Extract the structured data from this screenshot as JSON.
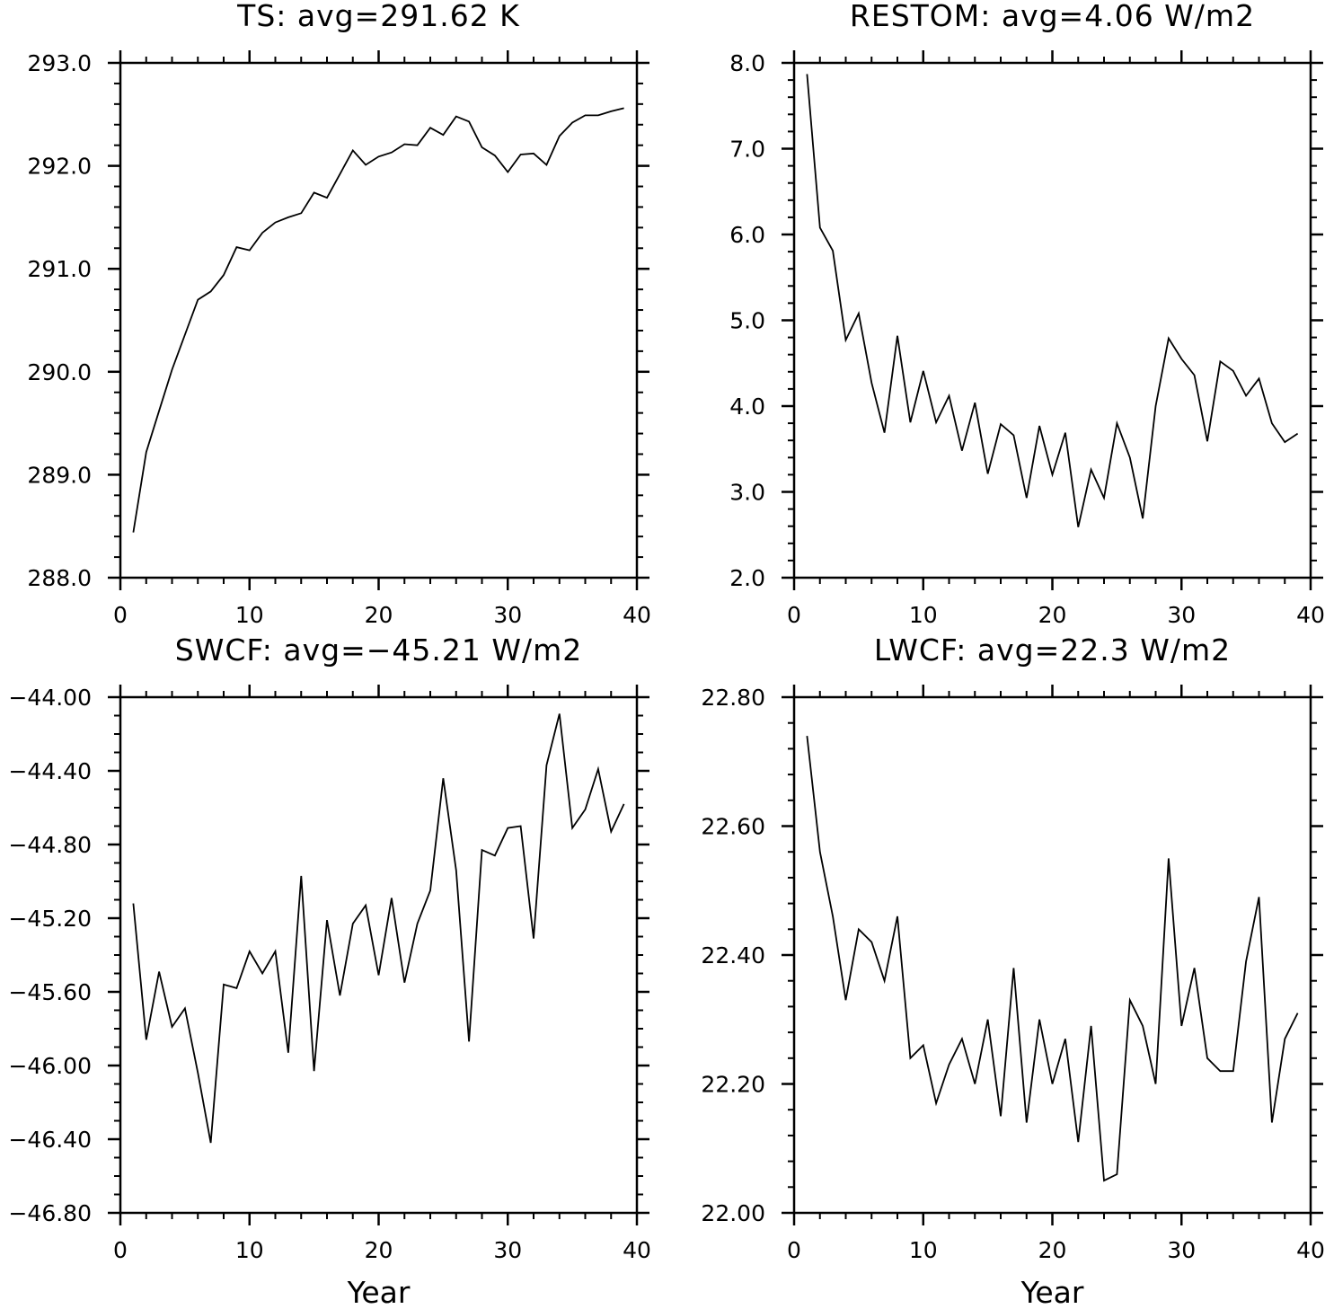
{
  "chart_data": [
    {
      "type": "line",
      "title": "TS: avg=291.62 K",
      "xlabel": "",
      "ylabel": "",
      "xlim": [
        0,
        40
      ],
      "ylim": [
        288.0,
        293.0
      ],
      "xticks": [
        0,
        10,
        20,
        30,
        40
      ],
      "xtick_labels": [
        "0",
        "10",
        "20",
        "30",
        "40"
      ],
      "yticks": [
        288.0,
        289.0,
        290.0,
        291.0,
        292.0,
        293.0
      ],
      "ytick_labels": [
        "288.0",
        "289.0",
        "290.0",
        "291.0",
        "292.0",
        "293.0"
      ],
      "y_minor_step": 0.2,
      "x_minor_step": 2,
      "grid": false,
      "x": [
        1,
        2,
        3,
        4,
        5,
        6,
        7,
        8,
        9,
        10,
        11,
        12,
        13,
        14,
        15,
        16,
        17,
        18,
        19,
        20,
        21,
        22,
        23,
        24,
        25,
        26,
        27,
        28,
        29,
        30,
        31,
        32,
        33,
        34,
        35,
        36,
        37,
        38,
        39
      ],
      "y": [
        288.44,
        289.22,
        289.62,
        290.02,
        290.36,
        290.7,
        290.78,
        290.94,
        291.21,
        291.18,
        291.35,
        291.45,
        291.5,
        291.54,
        291.74,
        291.69,
        291.92,
        292.15,
        292.01,
        292.09,
        292.13,
        292.21,
        292.2,
        292.37,
        292.3,
        292.48,
        292.43,
        292.18,
        292.1,
        291.94,
        292.11,
        292.12,
        292.01,
        292.29,
        292.42,
        292.49,
        292.49,
        292.53,
        292.56
      ]
    },
    {
      "type": "line",
      "title": "RESTOM: avg=4.06 W/m2",
      "xlabel": "",
      "ylabel": "",
      "xlim": [
        0,
        40
      ],
      "ylim": [
        2.0,
        8.0
      ],
      "xticks": [
        0,
        10,
        20,
        30,
        40
      ],
      "xtick_labels": [
        "0",
        "10",
        "20",
        "30",
        "40"
      ],
      "yticks": [
        2.0,
        3.0,
        4.0,
        5.0,
        6.0,
        7.0,
        8.0
      ],
      "ytick_labels": [
        "2.0",
        "3.0",
        "4.0",
        "5.0",
        "6.0",
        "7.0",
        "8.0"
      ],
      "y_minor_step": 0.2,
      "x_minor_step": 2,
      "grid": false,
      "x": [
        1,
        2,
        3,
        4,
        5,
        6,
        7,
        8,
        9,
        10,
        11,
        12,
        13,
        14,
        15,
        16,
        17,
        18,
        19,
        20,
        21,
        22,
        23,
        24,
        25,
        26,
        27,
        28,
        29,
        30,
        31,
        32,
        33,
        34,
        35,
        36,
        37,
        38,
        39
      ],
      "y": [
        7.87,
        6.08,
        5.81,
        4.77,
        5.08,
        4.27,
        3.69,
        4.82,
        3.81,
        4.41,
        3.81,
        4.12,
        3.48,
        4.04,
        3.21,
        3.79,
        3.66,
        2.93,
        3.77,
        3.2,
        3.69,
        2.59,
        3.26,
        2.93,
        3.8,
        3.4,
        2.69,
        4.0,
        4.79,
        4.55,
        4.36,
        3.59,
        4.52,
        4.41,
        4.12,
        4.32,
        3.8,
        3.58,
        3.68
      ]
    },
    {
      "type": "line",
      "title": "SWCF: avg=−45.21 W/m2",
      "xlabel": "Year",
      "ylabel": "",
      "xlim": [
        0,
        40
      ],
      "ylim": [
        -46.8,
        -44.0
      ],
      "xticks": [
        0,
        10,
        20,
        30,
        40
      ],
      "xtick_labels": [
        "0",
        "10",
        "20",
        "30",
        "40"
      ],
      "yticks": [
        -46.8,
        -46.4,
        -46.0,
        -45.6,
        -45.2,
        -44.8,
        -44.4,
        -44.0
      ],
      "ytick_labels": [
        "−46.80",
        "−46.40",
        "−46.00",
        "−45.60",
        "−45.20",
        "−44.80",
        "−44.40",
        "−44.00"
      ],
      "y_minor_step": 0.1,
      "x_minor_step": 2,
      "grid": false,
      "x": [
        1,
        2,
        3,
        4,
        5,
        6,
        7,
        8,
        9,
        10,
        11,
        12,
        13,
        14,
        15,
        16,
        17,
        18,
        19,
        20,
        21,
        22,
        23,
        24,
        25,
        26,
        27,
        28,
        29,
        30,
        31,
        32,
        33,
        34,
        35,
        36,
        37,
        38,
        39
      ],
      "y": [
        -45.12,
        -45.86,
        -45.49,
        -45.79,
        -45.69,
        -46.04,
        -46.42,
        -45.56,
        -45.58,
        -45.38,
        -45.5,
        -45.38,
        -45.93,
        -44.97,
        -46.03,
        -45.21,
        -45.62,
        -45.23,
        -45.13,
        -45.51,
        -45.09,
        -45.55,
        -45.23,
        -45.05,
        -44.44,
        -44.94,
        -45.87,
        -44.83,
        -44.86,
        -44.71,
        -44.7,
        -45.31,
        -44.37,
        -44.09,
        -44.71,
        -44.61,
        -44.39,
        -44.73,
        -44.58
      ]
    },
    {
      "type": "line",
      "title": "LWCF: avg=22.3 W/m2",
      "xlabel": "Year",
      "ylabel": "",
      "xlim": [
        0,
        40
      ],
      "ylim": [
        22.0,
        22.8
      ],
      "xticks": [
        0,
        10,
        20,
        30,
        40
      ],
      "xtick_labels": [
        "0",
        "10",
        "20",
        "30",
        "40"
      ],
      "yticks": [
        22.0,
        22.2,
        22.4,
        22.6,
        22.8
      ],
      "ytick_labels": [
        "22.00",
        "22.20",
        "22.40",
        "22.60",
        "22.80"
      ],
      "y_minor_step": 0.04,
      "x_minor_step": 2,
      "grid": false,
      "x": [
        1,
        2,
        3,
        4,
        5,
        6,
        7,
        8,
        9,
        10,
        11,
        12,
        13,
        14,
        15,
        16,
        17,
        18,
        19,
        20,
        21,
        22,
        23,
        24,
        25,
        26,
        27,
        28,
        29,
        30,
        31,
        32,
        33,
        34,
        35,
        36,
        37,
        38,
        39
      ],
      "y": [
        22.74,
        22.56,
        22.46,
        22.33,
        22.44,
        22.42,
        22.36,
        22.46,
        22.24,
        22.26,
        22.17,
        22.23,
        22.27,
        22.2,
        22.3,
        22.15,
        22.38,
        22.14,
        22.3,
        22.2,
        22.27,
        22.11,
        22.29,
        22.05,
        22.06,
        22.33,
        22.29,
        22.2,
        22.55,
        22.29,
        22.38,
        22.24,
        22.22,
        22.22,
        22.39,
        22.49,
        22.14,
        22.27,
        22.31
      ]
    }
  ]
}
